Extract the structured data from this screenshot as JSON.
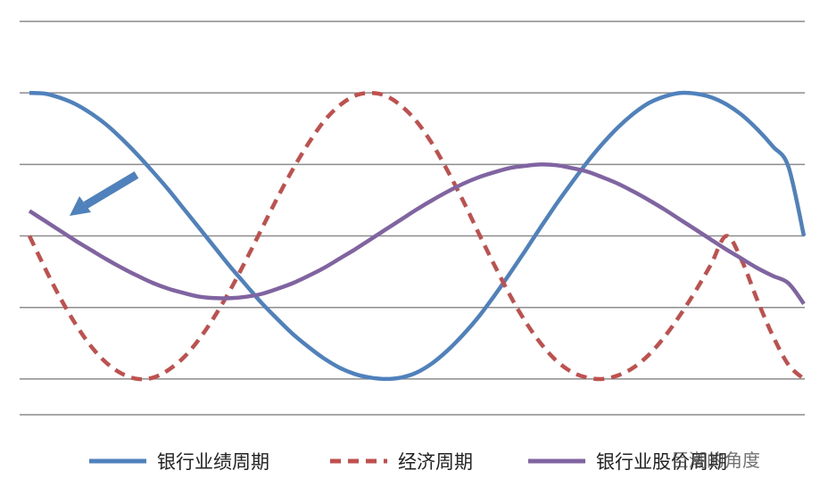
{
  "chart_data": {
    "type": "line",
    "title": "",
    "xlabel": "",
    "ylabel": "",
    "grid": true,
    "ylim": [
      -2.5,
      3
    ],
    "gridlines": [
      -2,
      -1,
      0,
      1,
      2,
      3
    ],
    "legend_position": "bottom",
    "series": [
      {
        "name": "银行业绩周期",
        "style": "solid",
        "color": "#4F81BD",
        "x": [
          0,
          0.5,
          1,
          1.5,
          2,
          2.5,
          3,
          3.5,
          4,
          4.5,
          5,
          5.5,
          6,
          6.5,
          7,
          7.5,
          8,
          8.5,
          9,
          9.5,
          10,
          10.5,
          11,
          11.5,
          12,
          12.5,
          13,
          13.5,
          14,
          14.5,
          15,
          15.5,
          16,
          16.5,
          17,
          17.5,
          18,
          18.5,
          19,
          19.5,
          20,
          20.5,
          21,
          21.5,
          22,
          22.5,
          23,
          23.5,
          24,
          24.5,
          25
        ],
        "y": [
          2.0,
          1.99,
          1.93,
          1.84,
          1.71,
          1.55,
          1.35,
          1.13,
          0.89,
          0.64,
          0.37,
          0.1,
          -0.17,
          -0.44,
          -0.69,
          -0.94,
          -1.16,
          -1.37,
          -1.55,
          -1.71,
          -1.84,
          -1.93,
          -1.98,
          -2.0,
          -1.98,
          -1.91,
          -1.78,
          -1.6,
          -1.38,
          -1.13,
          -0.84,
          -0.53,
          -0.21,
          0.12,
          0.44,
          0.74,
          1.03,
          1.29,
          1.52,
          1.71,
          1.86,
          1.95,
          2.0,
          1.99,
          1.94,
          1.84,
          1.69,
          1.49,
          1.25,
          0.97,
          0.0
        ]
      },
      {
        "name": "经济周期",
        "style": "dashed",
        "color": "#C0504D",
        "x": [
          0,
          0.5,
          1,
          1.5,
          2,
          2.5,
          3,
          3.5,
          4,
          4.5,
          5,
          5.5,
          6,
          6.5,
          7,
          7.5,
          8,
          8.5,
          9,
          9.5,
          10,
          10.5,
          11,
          11.5,
          12,
          12.5,
          13,
          13.5,
          14,
          14.5,
          15,
          15.5,
          16,
          16.5,
          17,
          17.5,
          18,
          18.5,
          19,
          19.5,
          20,
          20.5,
          21,
          21.5,
          22,
          22.5,
          23,
          23.5,
          24,
          24.5,
          25
        ],
        "y": [
          0.0,
          -0.45,
          -0.87,
          -1.24,
          -1.55,
          -1.78,
          -1.93,
          -2.0,
          -1.98,
          -1.87,
          -1.69,
          -1.43,
          -1.11,
          -0.74,
          -0.33,
          0.1,
          0.53,
          0.93,
          1.29,
          1.6,
          1.82,
          1.96,
          2.0,
          1.96,
          1.82,
          1.6,
          1.29,
          0.91,
          0.49,
          0.04,
          -0.4,
          -0.82,
          -1.19,
          -1.5,
          -1.74,
          -1.9,
          -1.98,
          -2.0,
          -1.95,
          -1.84,
          -1.66,
          -1.41,
          -1.11,
          -0.77,
          -0.4,
          0.0,
          -0.35,
          -0.9,
          -1.4,
          -1.8,
          -2.0
        ]
      },
      {
        "name": "银行业股价周期",
        "style": "solid",
        "color": "#8064A2",
        "x": [
          0,
          0.5,
          1,
          1.5,
          2,
          2.5,
          3,
          3.5,
          4,
          4.5,
          5,
          5.5,
          6,
          6.5,
          7,
          7.5,
          8,
          8.5,
          9,
          9.5,
          10,
          10.5,
          11,
          11.5,
          12,
          12.5,
          13,
          13.5,
          14,
          14.5,
          15,
          15.5,
          16,
          16.5,
          17,
          17.5,
          18,
          18.5,
          19,
          19.5,
          20,
          20.5,
          21,
          21.5,
          22,
          22.5,
          23,
          23.5,
          24,
          24.5,
          25
        ],
        "y": [
          0.35,
          0.21,
          0.07,
          -0.07,
          -0.2,
          -0.33,
          -0.45,
          -0.56,
          -0.66,
          -0.74,
          -0.8,
          -0.85,
          -0.87,
          -0.87,
          -0.85,
          -0.81,
          -0.74,
          -0.66,
          -0.56,
          -0.45,
          -0.32,
          -0.19,
          -0.05,
          0.09,
          0.23,
          0.37,
          0.5,
          0.62,
          0.73,
          0.82,
          0.89,
          0.95,
          0.98,
          1.0,
          0.99,
          0.95,
          0.9,
          0.82,
          0.73,
          0.62,
          0.5,
          0.37,
          0.23,
          0.09,
          -0.05,
          -0.19,
          -0.32,
          -0.45,
          -0.56,
          -0.66,
          -0.95
        ]
      }
    ],
    "annotations": [
      {
        "type": "arrow",
        "color": "#4F81BD",
        "direction": "down-left",
        "points_to_series": "银行业股价周期"
      }
    ]
  },
  "watermark": "巨潮的角度"
}
